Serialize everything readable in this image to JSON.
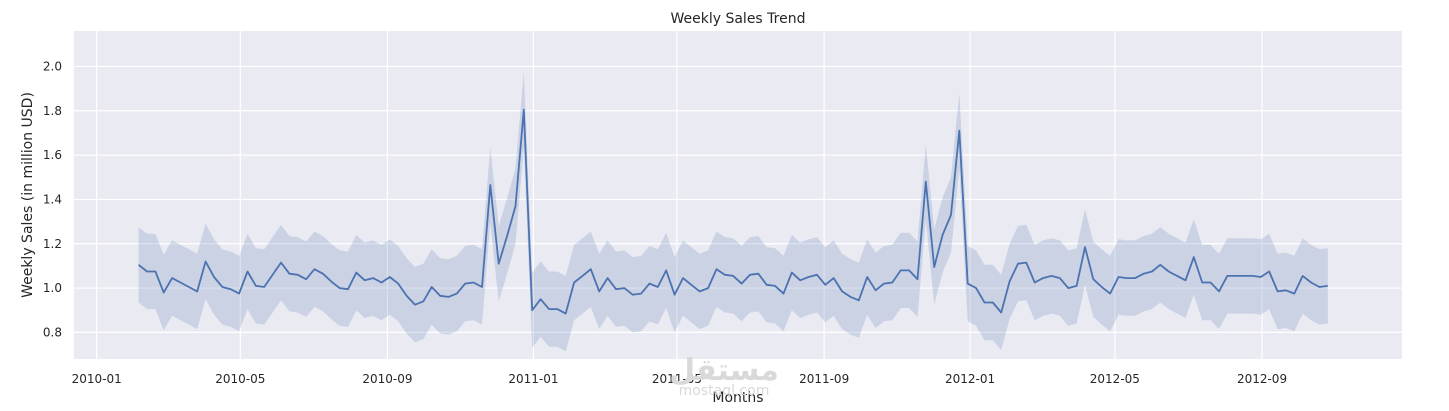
{
  "chart_data": {
    "type": "line",
    "title": "Weekly Sales Trend",
    "xlabel": "Months",
    "ylabel": "Weekly Sales (in million USD)",
    "x_ticks": [
      "2010-01",
      "2010-05",
      "2010-09",
      "2011-01",
      "2011-05",
      "2011-09",
      "2012-01",
      "2012-05",
      "2012-09"
    ],
    "y_ticks": [
      "0.8",
      "1.0",
      "1.2",
      "1.4",
      "1.6",
      "1.8",
      "2.0"
    ],
    "xlim": [
      "2009-12-13",
      "2012-12-27"
    ],
    "ylim": [
      0.68,
      2.16
    ],
    "grid": true,
    "background": "#eaeaf2",
    "line_color": "#4c72b0",
    "band_color": "#4c72b0",
    "series": [
      {
        "name": "",
        "start_date": "2010-02-05",
        "interval_days": 7,
        "values": [
          1.105,
          1.075,
          1.075,
          0.98,
          1.045,
          1.025,
          1.005,
          0.985,
          1.12,
          1.05,
          1.005,
          0.995,
          0.975,
          1.075,
          1.01,
          1.005,
          1.06,
          1.115,
          1.065,
          1.06,
          1.04,
          1.085,
          1.065,
          1.03,
          1.0,
          0.995,
          1.07,
          1.035,
          1.045,
          1.025,
          1.05,
          1.02,
          0.965,
          0.925,
          0.94,
          1.005,
          0.965,
          0.96,
          0.975,
          1.02,
          1.025,
          1.005,
          1.465,
          1.11,
          1.235,
          1.37,
          1.805,
          0.9,
          0.95,
          0.905,
          0.905,
          0.885,
          1.025,
          1.055,
          1.085,
          0.985,
          1.045,
          0.995,
          1.0,
          0.97,
          0.975,
          1.02,
          1.005,
          1.08,
          0.97,
          1.045,
          1.015,
          0.985,
          1.0,
          1.085,
          1.06,
          1.055,
          1.02,
          1.06,
          1.065,
          1.015,
          1.01,
          0.975,
          1.07,
          1.035,
          1.05,
          1.06,
          1.015,
          1.045,
          0.985,
          0.96,
          0.945,
          1.05,
          0.99,
          1.02,
          1.025,
          1.08,
          1.08,
          1.04,
          1.48,
          1.095,
          1.24,
          1.33,
          1.71,
          1.02,
          1.0,
          0.935,
          0.935,
          0.89,
          1.03,
          1.11,
          1.115,
          1.025,
          1.045,
          1.055,
          1.045,
          1.0,
          1.01,
          1.185,
          1.04,
          1.005,
          0.975,
          1.05,
          1.045,
          1.045,
          1.065,
          1.075,
          1.105,
          1.075,
          1.055,
          1.035,
          1.14,
          1.025,
          1.025,
          0.985,
          1.055,
          1.055,
          1.055,
          1.055,
          1.05,
          1.075,
          0.985,
          0.99,
          0.975,
          1.055,
          1.025,
          1.005,
          1.01
        ],
        "ci_halfwidth": 0.17
      }
    ]
  },
  "watermark": {
    "text": "مستقل",
    "subtext": "mostaql.com"
  }
}
